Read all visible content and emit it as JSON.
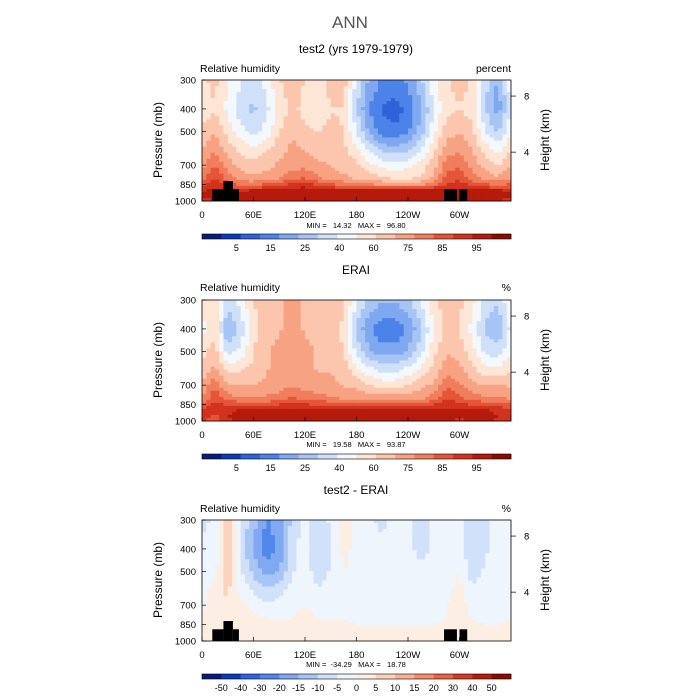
{
  "figure": {
    "main_title": "ANN"
  },
  "colors": {
    "absolute_palette": [
      "#081d7b",
      "#0a3bb7",
      "#2e62d8",
      "#4d83e8",
      "#7fa8f0",
      "#a8c4f4",
      "#cfe0f8",
      "#f3f8fd",
      "#fde6d6",
      "#fbc6ad",
      "#f7a383",
      "#f07d5c",
      "#e5553a",
      "#d1331f",
      "#b51a0b",
      "#8a0b02"
    ],
    "difference_palette": [
      "#081d7b",
      "#0b3db9",
      "#2f63db",
      "#5187ea",
      "#80a9f1",
      "#a9c5f5",
      "#d0e1f9",
      "#eef5fd",
      "#fdeee3",
      "#fbd3bd",
      "#f8b394",
      "#f38d6b",
      "#ea6245",
      "#d73a24",
      "#b81b0b",
      "#8a0b02"
    ],
    "topography": "#000000"
  },
  "chart_data": [
    {
      "type": "heatmap",
      "title": "test2 (yrs 1979-1979)",
      "left_label": "Relative humidity",
      "right_label": "percent",
      "ylabel": "Pressure (mb)",
      "ylabel_right": "Height (km)",
      "x_ticks": [
        "0",
        "60E",
        "120E",
        "180",
        "120W",
        "60W"
      ],
      "y_ticks": [
        "300",
        "400",
        "500",
        "700",
        "850",
        "1000"
      ],
      "height_ticks": [
        "8",
        "4"
      ],
      "stats": "MIN =   14.32   MAX =   96.80",
      "colorbar_labels": [
        "5",
        "15",
        "25",
        "40",
        "60",
        "75",
        "85",
        "95"
      ],
      "palette": "absolute",
      "topography": true,
      "field": {
        "lon": [
          0,
          15,
          30,
          45,
          60,
          75,
          90,
          105,
          120,
          135,
          150,
          165,
          180,
          195,
          210,
          225,
          240,
          255,
          270,
          285,
          300,
          315,
          330,
          345,
          360
        ],
        "lev": [
          300,
          400,
          500,
          600,
          700,
          800,
          850,
          900,
          950,
          1000
        ],
        "values": [
          [
            55,
            58,
            50,
            44,
            40,
            46,
            56,
            60,
            56,
            54,
            58,
            60,
            42,
            30,
            24,
            22,
            26,
            36,
            48,
            56,
            58,
            56,
            40,
            30,
            48
          ],
          [
            52,
            56,
            48,
            40,
            36,
            42,
            52,
            58,
            54,
            52,
            56,
            56,
            38,
            24,
            18,
            16,
            20,
            30,
            44,
            54,
            56,
            54,
            38,
            28,
            44
          ],
          [
            58,
            62,
            54,
            46,
            42,
            46,
            56,
            62,
            58,
            56,
            58,
            56,
            44,
            30,
            22,
            20,
            24,
            34,
            48,
            60,
            62,
            58,
            44,
            36,
            50
          ],
          [
            62,
            68,
            60,
            54,
            52,
            56,
            60,
            64,
            62,
            60,
            60,
            58,
            52,
            42,
            36,
            34,
            36,
            44,
            54,
            66,
            68,
            62,
            54,
            48,
            56
          ],
          [
            66,
            76,
            66,
            60,
            58,
            60,
            64,
            66,
            66,
            64,
            62,
            60,
            58,
            52,
            48,
            46,
            48,
            52,
            60,
            72,
            74,
            66,
            60,
            56,
            62
          ],
          [
            72,
            82,
            72,
            66,
            64,
            66,
            68,
            74,
            76,
            70,
            66,
            64,
            62,
            60,
            58,
            56,
            56,
            58,
            64,
            78,
            80,
            72,
            66,
            64,
            68
          ],
          [
            78,
            86,
            78,
            74,
            74,
            76,
            78,
            84,
            86,
            80,
            76,
            74,
            72,
            70,
            68,
            66,
            66,
            68,
            74,
            82,
            84,
            80,
            76,
            74,
            76
          ],
          [
            86,
            90,
            86,
            86,
            88,
            88,
            88,
            90,
            90,
            88,
            88,
            88,
            88,
            88,
            88,
            88,
            88,
            88,
            88,
            90,
            90,
            88,
            88,
            88,
            86
          ],
          [
            88,
            90,
            88,
            92,
            94,
            94,
            92,
            92,
            92,
            92,
            94,
            94,
            94,
            94,
            94,
            94,
            94,
            94,
            92,
            92,
            92,
            92,
            94,
            94,
            90
          ],
          [
            84,
            88,
            86,
            86,
            86,
            88,
            86,
            88,
            88,
            88,
            88,
            88,
            88,
            88,
            88,
            88,
            88,
            88,
            88,
            86,
            86,
            88,
            88,
            86,
            84
          ]
        ]
      }
    },
    {
      "type": "heatmap",
      "title": "ERAI",
      "left_label": "Relative humidity",
      "right_label": "%",
      "ylabel": "Pressure (mb)",
      "ylabel_right": "Height (km)",
      "x_ticks": [
        "0",
        "60E",
        "120E",
        "180",
        "120W",
        "60W"
      ],
      "y_ticks": [
        "300",
        "400",
        "500",
        "700",
        "850",
        "1000"
      ],
      "height_ticks": [
        "8",
        "4"
      ],
      "stats": "MIN =   19.58   MAX =   93.87",
      "colorbar_labels": [
        "5",
        "15",
        "25",
        "40",
        "60",
        "75",
        "85",
        "95"
      ],
      "palette": "absolute",
      "topography": false,
      "field": {
        "lon": [
          0,
          15,
          30,
          45,
          60,
          75,
          90,
          105,
          120,
          135,
          150,
          165,
          180,
          195,
          210,
          225,
          240,
          255,
          270,
          285,
          300,
          315,
          330,
          345,
          360
        ],
        "lev": [
          300,
          400,
          500,
          600,
          700,
          800,
          850,
          900,
          950,
          1000
        ],
        "values": [
          [
            52,
            56,
            40,
            46,
            56,
            60,
            62,
            64,
            62,
            62,
            62,
            58,
            44,
            36,
            32,
            32,
            36,
            44,
            54,
            60,
            58,
            52,
            42,
            38,
            50
          ],
          [
            48,
            54,
            30,
            40,
            54,
            60,
            62,
            64,
            62,
            60,
            60,
            54,
            36,
            26,
            20,
            20,
            26,
            36,
            50,
            58,
            56,
            48,
            36,
            32,
            46
          ],
          [
            54,
            60,
            40,
            46,
            56,
            62,
            64,
            66,
            64,
            62,
            62,
            56,
            42,
            32,
            28,
            28,
            32,
            42,
            54,
            62,
            60,
            52,
            42,
            40,
            50
          ],
          [
            58,
            64,
            54,
            56,
            58,
            62,
            64,
            66,
            64,
            62,
            62,
            60,
            52,
            46,
            42,
            42,
            46,
            52,
            58,
            66,
            64,
            58,
            52,
            52,
            56
          ],
          [
            64,
            74,
            62,
            62,
            62,
            64,
            66,
            68,
            66,
            64,
            64,
            62,
            60,
            56,
            54,
            54,
            56,
            60,
            64,
            74,
            70,
            64,
            62,
            62,
            62
          ],
          [
            70,
            80,
            72,
            70,
            70,
            70,
            72,
            76,
            74,
            72,
            70,
            68,
            68,
            66,
            66,
            66,
            66,
            68,
            72,
            82,
            78,
            72,
            70,
            70,
            68
          ],
          [
            76,
            84,
            80,
            80,
            80,
            80,
            82,
            84,
            82,
            80,
            80,
            80,
            80,
            80,
            80,
            80,
            80,
            80,
            82,
            86,
            84,
            80,
            80,
            80,
            76
          ],
          [
            82,
            86,
            86,
            88,
            88,
            88,
            88,
            88,
            88,
            88,
            88,
            88,
            88,
            88,
            88,
            88,
            88,
            88,
            88,
            88,
            88,
            88,
            88,
            86,
            82
          ],
          [
            84,
            80,
            88,
            90,
            90,
            90,
            90,
            90,
            90,
            90,
            90,
            90,
            90,
            90,
            90,
            90,
            90,
            90,
            90,
            90,
            88,
            90,
            90,
            88,
            84
          ],
          [
            82,
            78,
            86,
            88,
            88,
            88,
            88,
            88,
            88,
            88,
            88,
            88,
            88,
            88,
            88,
            88,
            88,
            88,
            88,
            88,
            86,
            88,
            88,
            86,
            82
          ]
        ]
      }
    },
    {
      "type": "heatmap",
      "title": "test2 - ERAI",
      "left_label": "Relative humidity",
      "right_label": "%",
      "ylabel": "Pressure (mb)",
      "ylabel_right": "Height (km)",
      "x_ticks": [
        "0",
        "60E",
        "120E",
        "180",
        "120W",
        "60W"
      ],
      "y_ticks": [
        "300",
        "400",
        "500",
        "700",
        "850",
        "1000"
      ],
      "height_ticks": [
        "8",
        "4"
      ],
      "stats": "MIN =  -34.29   MAX =   18.78",
      "colorbar_labels": [
        "-50",
        "-40",
        "-30",
        "-20",
        "-15",
        "-10",
        "-5",
        "0",
        "5",
        "10",
        "15",
        "20",
        "30",
        "40",
        "50"
      ],
      "palette": "difference",
      "topography": true,
      "field": {
        "lon": [
          0,
          15,
          30,
          45,
          60,
          75,
          90,
          105,
          120,
          135,
          150,
          165,
          180,
          195,
          210,
          225,
          240,
          255,
          270,
          285,
          300,
          315,
          330,
          345,
          360
        ],
        "lev": [
          300,
          400,
          500,
          600,
          700,
          800,
          850,
          900,
          950,
          1000
        ],
        "values": [
          [
            -8,
            -6,
            10,
            -8,
            -18,
            -28,
            -24,
            -12,
            -4,
            -10,
            -6,
            2,
            -2,
            -6,
            -8,
            -4,
            -6,
            -8,
            -6,
            -4,
            -2,
            -12,
            -8,
            -4,
            -6
          ],
          [
            -6,
            -4,
            14,
            -10,
            -22,
            -32,
            -26,
            -10,
            -2,
            -14,
            -8,
            2,
            -2,
            -4,
            -6,
            -4,
            -6,
            -8,
            -6,
            -4,
            -2,
            -14,
            -8,
            -4,
            -6
          ],
          [
            -4,
            -2,
            12,
            -6,
            -16,
            -24,
            -20,
            -8,
            -2,
            -12,
            -6,
            0,
            -2,
            -4,
            -6,
            -4,
            -4,
            -6,
            -6,
            -2,
            0,
            -10,
            -6,
            -2,
            -4
          ],
          [
            -4,
            4,
            8,
            -2,
            -8,
            -12,
            -10,
            -4,
            -2,
            -6,
            -4,
            0,
            -2,
            -4,
            -4,
            -2,
            -4,
            -4,
            -4,
            -2,
            2,
            -6,
            -4,
            -2,
            -4
          ],
          [
            -2,
            6,
            6,
            2,
            -2,
            -6,
            -4,
            -2,
            0,
            -2,
            -2,
            0,
            -2,
            -2,
            -2,
            -2,
            -2,
            -2,
            -2,
            0,
            4,
            -2,
            -2,
            -2,
            -2
          ],
          [
            0,
            4,
            4,
            4,
            2,
            0,
            0,
            0,
            2,
            0,
            0,
            0,
            -2,
            -2,
            -2,
            -2,
            -2,
            -2,
            -2,
            0,
            2,
            0,
            -2,
            -2,
            0
          ],
          [
            2,
            4,
            2,
            6,
            6,
            4,
            4,
            4,
            4,
            2,
            2,
            2,
            0,
            0,
            0,
            0,
            0,
            0,
            0,
            2,
            2,
            2,
            0,
            0,
            2
          ],
          [
            6,
            4,
            2,
            4,
            6,
            6,
            6,
            4,
            4,
            4,
            4,
            4,
            4,
            4,
            4,
            4,
            4,
            4,
            4,
            4,
            2,
            4,
            4,
            2,
            4
          ],
          [
            4,
            6,
            2,
            2,
            4,
            4,
            4,
            4,
            4,
            4,
            4,
            4,
            4,
            4,
            4,
            4,
            4,
            4,
            4,
            2,
            2,
            2,
            4,
            4,
            4
          ],
          [
            2,
            8,
            2,
            0,
            0,
            0,
            0,
            0,
            0,
            0,
            0,
            0,
            0,
            0,
            0,
            0,
            0,
            0,
            0,
            0,
            0,
            0,
            0,
            2,
            2
          ]
        ]
      }
    }
  ]
}
